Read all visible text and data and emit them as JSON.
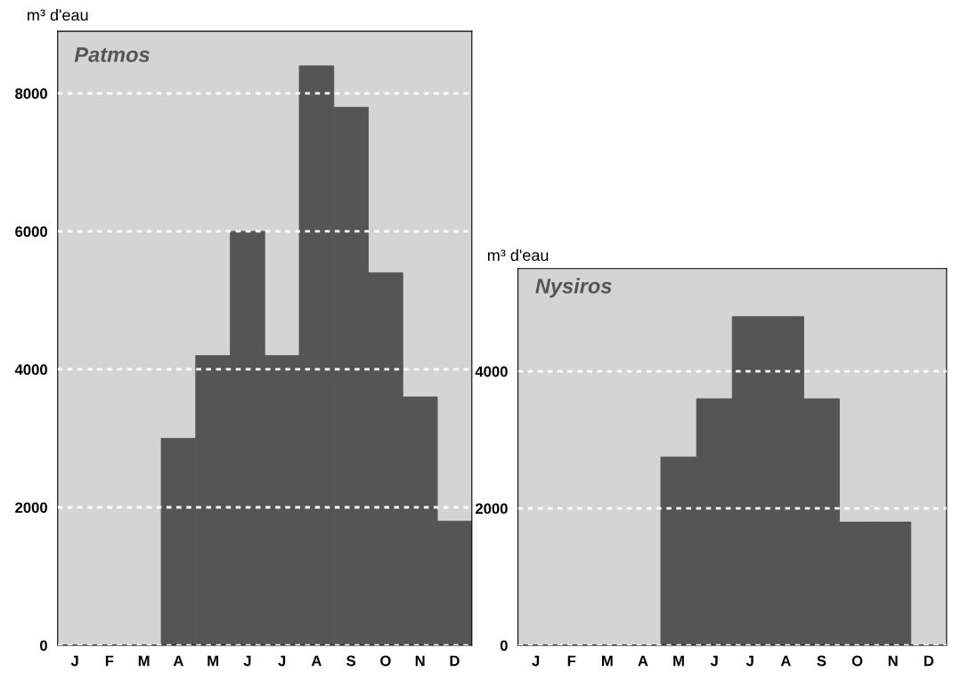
{
  "chart_data": [
    {
      "type": "bar",
      "title": "Patmos",
      "ylabel": "m³ d'eau",
      "categories": [
        "J",
        "F",
        "M",
        "A",
        "M",
        "J",
        "J",
        "A",
        "S",
        "O",
        "N",
        "D"
      ],
      "series": [
        {
          "color": "#555555",
          "values": [
            0,
            0,
            0,
            3000,
            4200,
            6000,
            4200,
            8400,
            7800,
            5400,
            3600,
            1800
          ]
        }
      ],
      "ylim": [
        0,
        8900
      ],
      "yticks": [
        0,
        2000,
        4000,
        6000,
        8000
      ],
      "grid": "y",
      "legend": false
    },
    {
      "type": "bar",
      "title": "Nysiros",
      "ylabel": "m³ d'eau",
      "categories": [
        "J",
        "F",
        "M",
        "A",
        "M",
        "J",
        "J",
        "A",
        "S",
        "O",
        "N",
        "D"
      ],
      "series": [
        {
          "color": "#555555",
          "values": [
            0,
            0,
            0,
            0,
            2750,
            3600,
            4800,
            4800,
            3600,
            1800,
            1800,
            0
          ]
        }
      ],
      "ylim": [
        0,
        5500
      ],
      "yticks": [
        0,
        2000,
        4000
      ],
      "grid": "y",
      "legend": false
    }
  ]
}
